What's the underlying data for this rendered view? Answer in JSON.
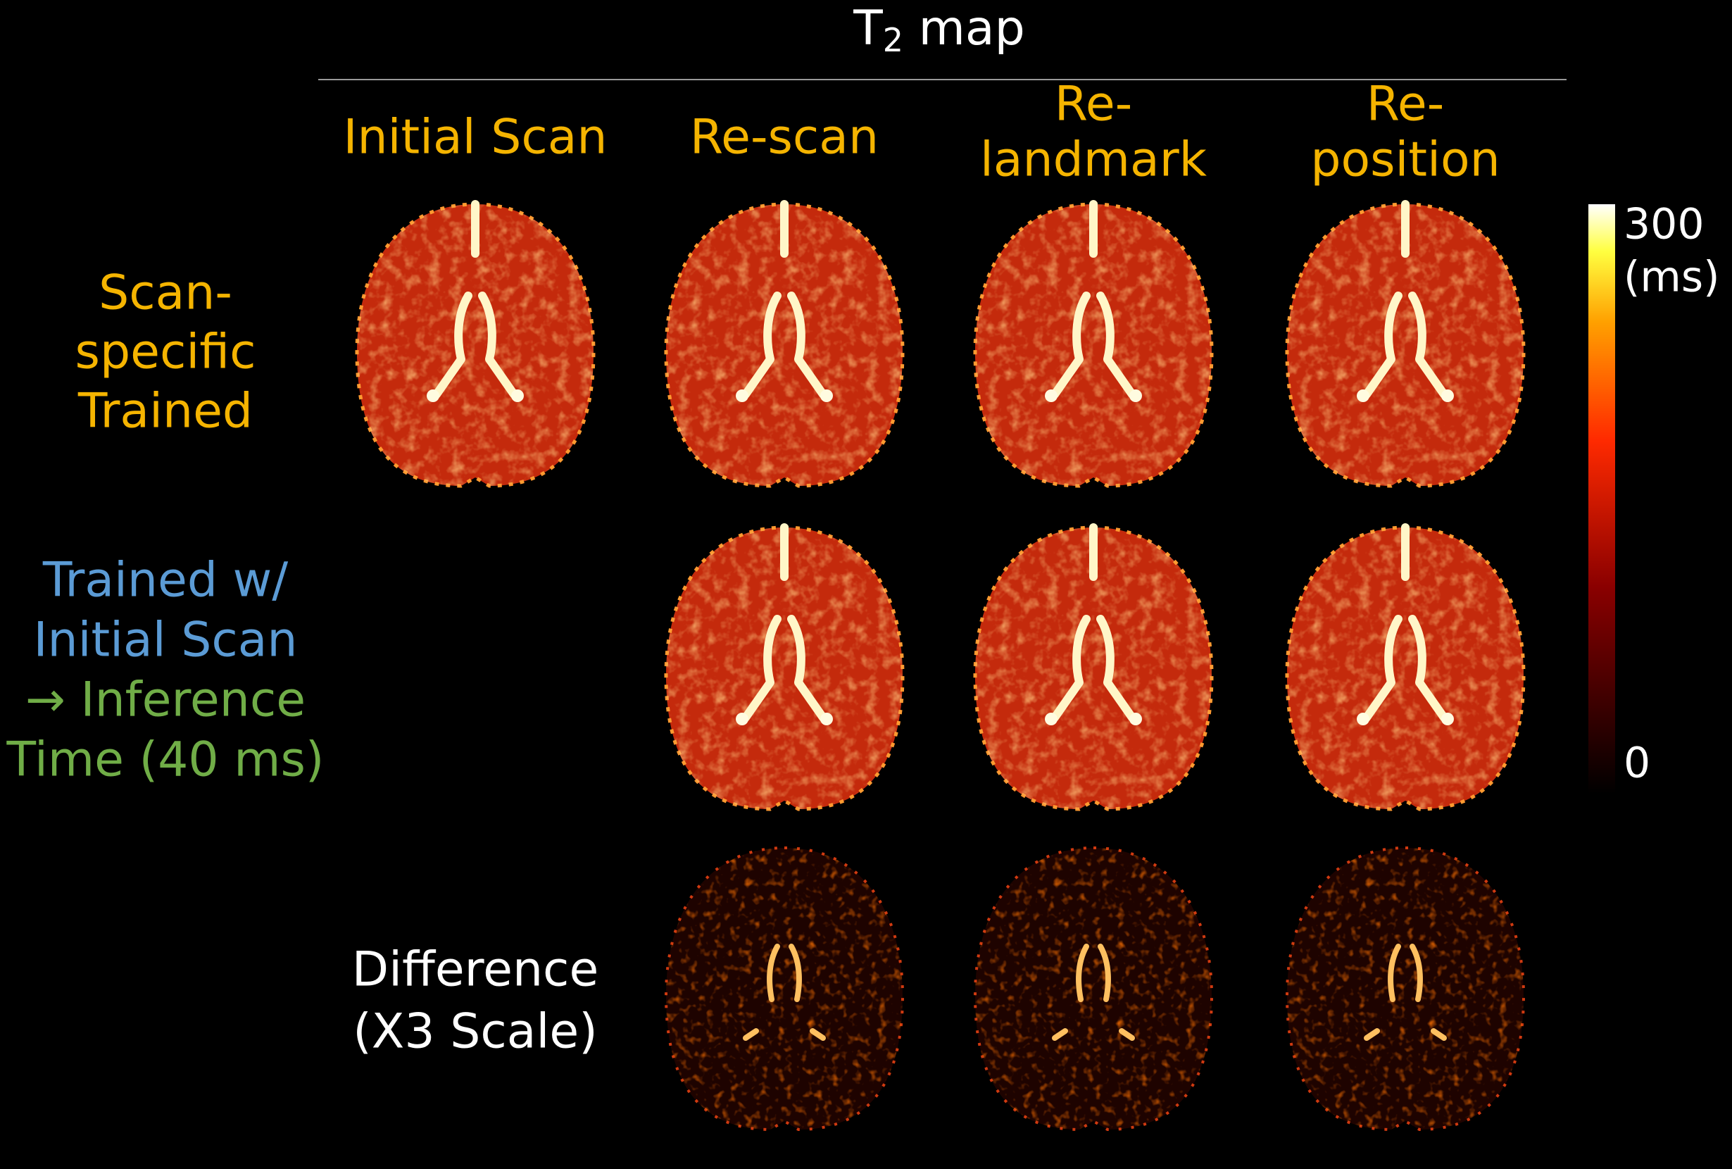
{
  "title": {
    "main": "T",
    "sub": "2",
    "rest": " map"
  },
  "columns": [
    [
      "Initial Scan"
    ],
    [
      "Re-scan"
    ],
    [
      "Re-",
      "landmark"
    ],
    [
      "Re-",
      "position"
    ]
  ],
  "rows": {
    "scan_specific": [
      "Scan-",
      "specific",
      "Trained"
    ],
    "trained_initial": [
      "Trained w/",
      "Initial Scan"
    ],
    "inference": [
      "→ Inference",
      "Time (40 ms)"
    ],
    "difference": [
      "Difference",
      "(X3 Scale)"
    ]
  },
  "colorbar": {
    "max": "300",
    "unit": "(ms)",
    "min": "0"
  }
}
